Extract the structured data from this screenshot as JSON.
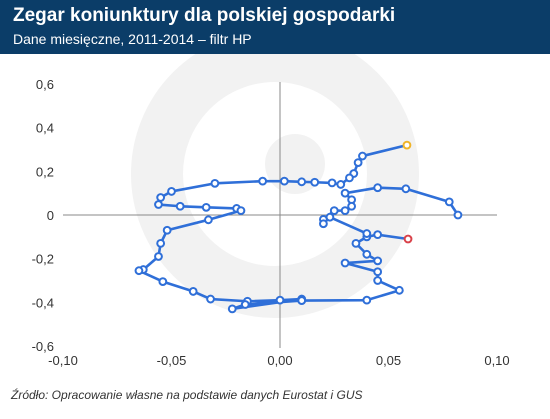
{
  "header": {
    "title": "Zegar koniunktury dla polskiej gospodarki",
    "subtitle": "Dane miesięczne, 2011-2014 – filtr HP"
  },
  "footer": {
    "source": "Źródło: Opracowanie własne na podstawie danych Eurostat i GUS"
  },
  "colors": {
    "header_bg": "#0b3d68",
    "line": "#2f6fd8",
    "start_marker": "#f0b429",
    "end_marker": "#d9424a",
    "axis": "#888888",
    "watermark": "#f2f2f2"
  },
  "chart_data": {
    "type": "line",
    "xlim": [
      -0.1,
      0.1
    ],
    "ylim": [
      -0.6,
      0.6
    ],
    "x_ticks": [
      "-0,10",
      "-0,05",
      "0,00",
      "0,05",
      "0,10"
    ],
    "y_ticks": [
      "0,6",
      "0,4",
      "0,2",
      "0",
      "-0,2",
      "-0,4",
      "-0,6"
    ],
    "grid": false,
    "series": [
      {
        "points": [
          [
            0.0585,
            0.32
          ],
          [
            0.038,
            0.27
          ],
          [
            0.036,
            0.24
          ],
          [
            0.034,
            0.19
          ],
          [
            0.032,
            0.17
          ],
          [
            0.028,
            0.14
          ],
          [
            0.024,
            0.147
          ],
          [
            0.016,
            0.15
          ],
          [
            0.01,
            0.152
          ],
          [
            0.002,
            0.155
          ],
          [
            -0.008,
            0.155
          ],
          [
            -0.03,
            0.145
          ],
          [
            -0.05,
            0.108
          ],
          [
            -0.055,
            0.08
          ],
          [
            -0.056,
            0.048
          ],
          [
            -0.046,
            0.04
          ],
          [
            -0.034,
            0.035
          ],
          [
            -0.02,
            0.03
          ],
          [
            -0.018,
            0.02
          ],
          [
            -0.033,
            -0.022
          ],
          [
            -0.052,
            -0.07
          ],
          [
            -0.055,
            -0.13
          ],
          [
            -0.056,
            -0.19
          ],
          [
            -0.063,
            -0.25
          ],
          [
            -0.065,
            -0.255
          ],
          [
            -0.054,
            -0.305
          ],
          [
            -0.04,
            -0.35
          ],
          [
            -0.032,
            -0.385
          ],
          [
            -0.015,
            -0.395
          ],
          [
            0.0,
            -0.39
          ],
          [
            0.01,
            -0.385
          ],
          [
            -0.022,
            -0.43
          ],
          [
            -0.016,
            -0.41
          ],
          [
            0.01,
            -0.392
          ],
          [
            0.04,
            -0.39
          ],
          [
            0.055,
            -0.345
          ],
          [
            0.045,
            -0.3
          ],
          [
            0.045,
            -0.26
          ],
          [
            0.03,
            -0.22
          ],
          [
            0.045,
            -0.21
          ],
          [
            0.04,
            -0.18
          ],
          [
            0.035,
            -0.13
          ],
          [
            0.04,
            -0.1
          ],
          [
            0.045,
            -0.09
          ],
          [
            0.059,
            -0.11
          ]
        ]
      },
      {
        "points": [
          [
            0.082,
            0.0
          ],
          [
            0.078,
            0.06
          ],
          [
            0.058,
            0.12
          ],
          [
            0.045,
            0.125
          ],
          [
            0.03,
            0.1
          ],
          [
            0.033,
            0.07
          ],
          [
            0.033,
            0.04
          ],
          [
            0.03,
            0.02
          ],
          [
            0.025,
            0.02
          ],
          [
            0.02,
            -0.02
          ],
          [
            0.02,
            -0.04
          ],
          [
            0.023,
            -0.01
          ],
          [
            0.04,
            -0.085
          ]
        ]
      }
    ]
  }
}
